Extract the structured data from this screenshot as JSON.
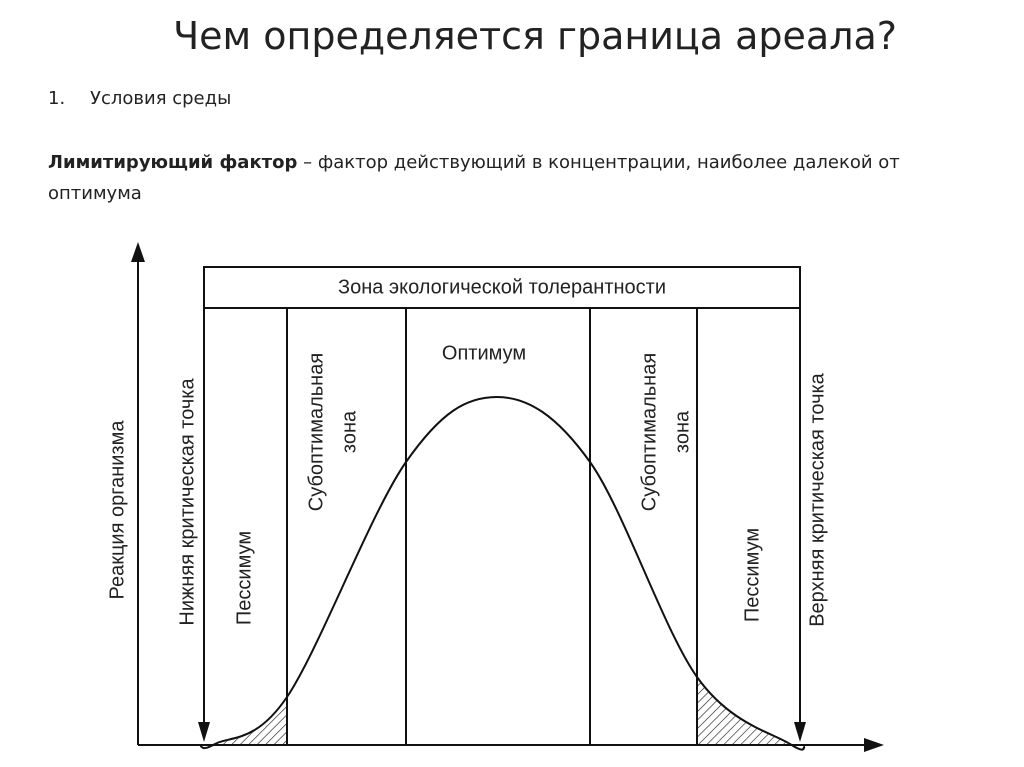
{
  "header": {
    "title": "Чем определяется граница ареала?"
  },
  "list": {
    "items": [
      {
        "number": "1.",
        "text": "Условия среды"
      }
    ]
  },
  "definition": {
    "term": "Лимитирующий фактор",
    "text": "– фактор действующий в концентрации, наиболее далекой от оптимума"
  },
  "diagram": {
    "y_axis_label": "Реакция организма",
    "zone_title": "Зона экологической толерантности",
    "optimum": "Оптимум",
    "lower_critical_point": "Нижняя критическая точка",
    "upper_critical_point": "Верхняя критическая точка",
    "left_pessimum": "Пессимум",
    "right_pessimum": "Пессимум",
    "left_suboptimal": [
      "Субоптимальная",
      "зона"
    ],
    "right_suboptimal": [
      "Субоптимальная",
      "зона"
    ]
  }
}
